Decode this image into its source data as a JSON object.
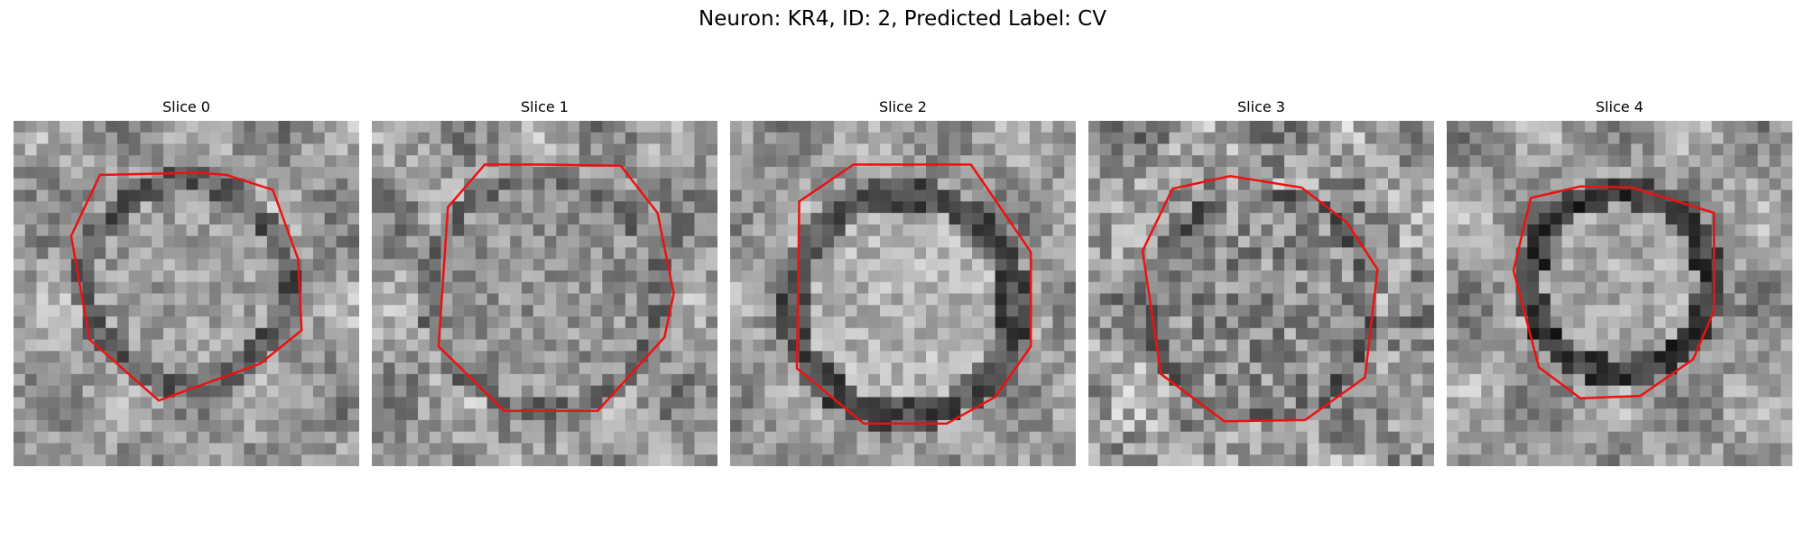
{
  "figure": {
    "title": "Neuron: KR4, ID: 2, Predicted Label: CV"
  },
  "colors": {
    "contour": "#ee1111",
    "background": "#ffffff"
  },
  "panels": [
    {
      "title": "Slice 0"
    },
    {
      "title": "Slice 1"
    },
    {
      "title": "Slice 2"
    },
    {
      "title": "Slice 3"
    },
    {
      "title": "Slice 4"
    }
  ]
}
